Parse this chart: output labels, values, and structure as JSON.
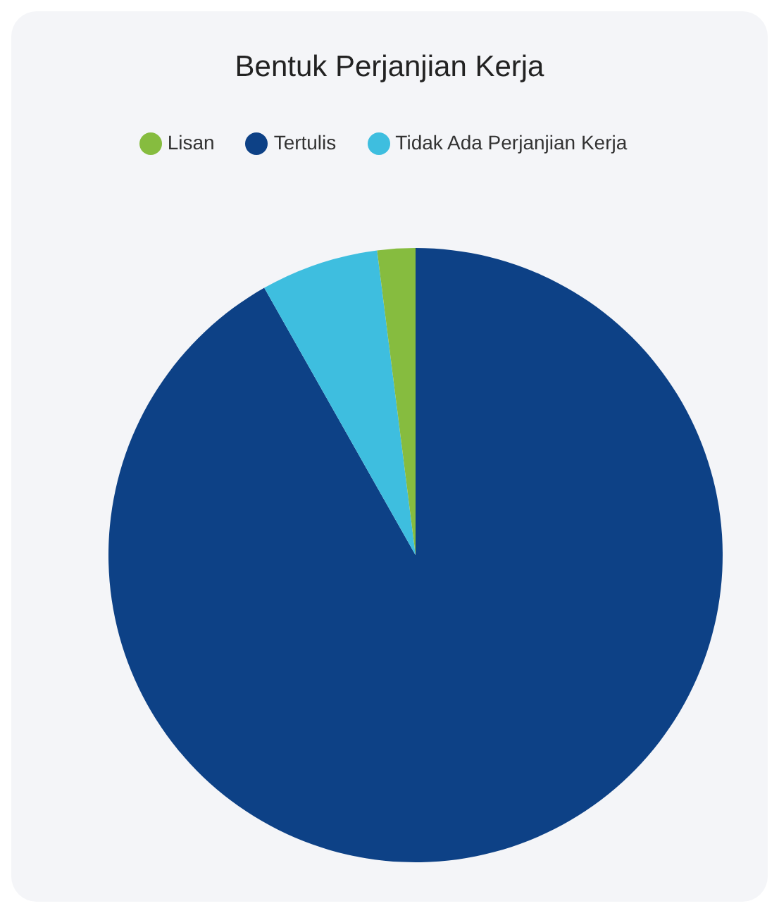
{
  "chart_data": {
    "type": "pie",
    "title": "Bentuk Perjanjian Kerja",
    "categories": [
      "Tertulis",
      "Tidak Ada Perjanjian Kerja",
      "Lisan"
    ],
    "values": [
      91.8,
      6.2,
      2
    ],
    "colors": [
      "#0d4186",
      "#3ebedf",
      "#86bc3f"
    ],
    "legend": "top"
  }
}
